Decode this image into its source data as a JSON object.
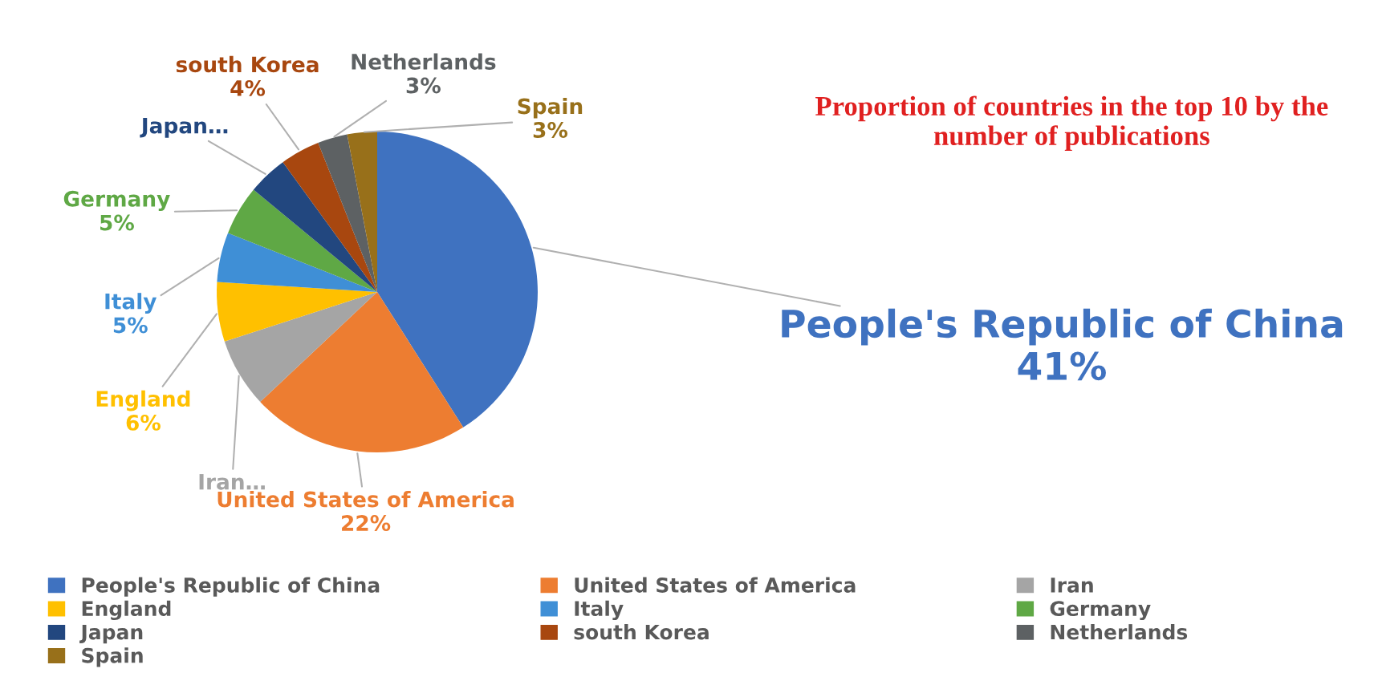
{
  "chart_data": {
    "type": "pie",
    "title": "Proportion of countries in the top 10 by the number of publications",
    "categories": [
      "People's Republic of China",
      "United States of America",
      "Iran",
      "England",
      "Italy",
      "Germany",
      "Japan",
      "south Korea",
      "Netherlands",
      "Spain"
    ],
    "values": [
      41,
      22,
      7,
      6,
      5,
      5,
      4,
      4,
      3,
      3
    ],
    "value_labels": [
      "People's Republic of China\n41%",
      "United States of America\n22%",
      "Iran…",
      "England\n6%",
      "Italy\n5%",
      "Germany\n5%",
      "Japan…",
      "south Korea\n4%",
      "Netherlands\n3%",
      "Spain\n3%"
    ],
    "colors": [
      "#3f72c0",
      "#ed7d31",
      "#a5a5a5",
      "#ffc000",
      "#3f8fd6",
      "#5fa845",
      "#22477f",
      "#a8470f",
      "#5d6163",
      "#98701a"
    ],
    "legend": "bottom"
  }
}
